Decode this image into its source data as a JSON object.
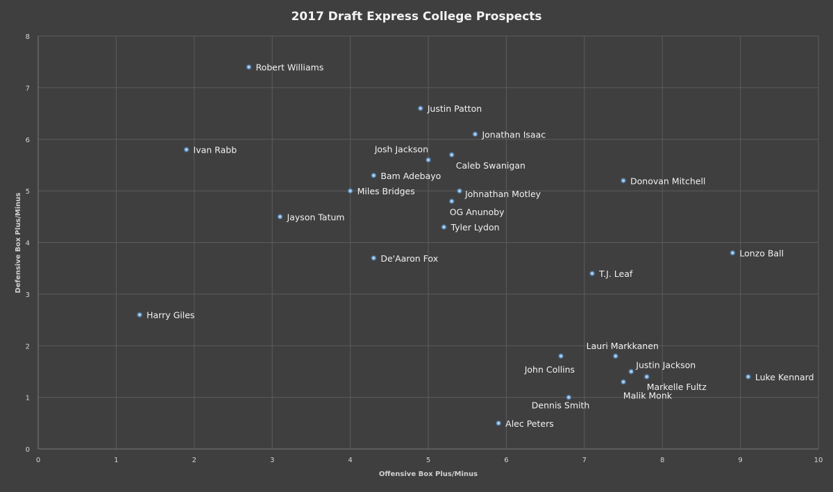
{
  "chart_data": {
    "type": "scatter",
    "title": "2017 Draft Express College Prospects",
    "xlabel": "Offensive Box Plus/Minus",
    "ylabel": "Defensive Box Plus/Minus",
    "xlim": [
      0,
      10
    ],
    "ylim": [
      0,
      8
    ],
    "x_ticks": [
      "0",
      "1",
      "2",
      "3",
      "4",
      "5",
      "6",
      "7",
      "8",
      "9",
      "10"
    ],
    "y_ticks": [
      "0",
      "1",
      "2",
      "3",
      "4",
      "5",
      "6",
      "7",
      "8"
    ],
    "grid": true,
    "colors": {
      "background": "#3f3f3f",
      "marker": "#a9cdec",
      "text": "#f2f2f2"
    },
    "points": [
      {
        "label": "Robert Williams",
        "x": 2.7,
        "y": 7.4,
        "label_pos": "right"
      },
      {
        "label": "Justin Patton",
        "x": 4.9,
        "y": 6.6,
        "label_pos": "right"
      },
      {
        "label": "Jonathan Isaac",
        "x": 5.6,
        "y": 6.1,
        "label_pos": "right"
      },
      {
        "label": "Ivan Rabb",
        "x": 1.9,
        "y": 5.8,
        "label_pos": "right"
      },
      {
        "label": "Josh Jackson",
        "x": 5.0,
        "y": 5.6,
        "label_pos": "above-left"
      },
      {
        "label": "Caleb Swanigan",
        "x": 5.3,
        "y": 5.7,
        "label_pos": "below-right"
      },
      {
        "label": "Bam Adebayo",
        "x": 4.3,
        "y": 5.3,
        "label_pos": "right"
      },
      {
        "label": "Donovan Mitchell",
        "x": 7.5,
        "y": 5.2,
        "label_pos": "right"
      },
      {
        "label": "Miles Bridges",
        "x": 4.0,
        "y": 5.0,
        "label_pos": "right"
      },
      {
        "label": "Johnathan Motley",
        "x": 5.4,
        "y": 5.0,
        "label_pos": "below-right"
      },
      {
        "label": "OG Anunoby",
        "x": 5.3,
        "y": 4.8,
        "label_pos": "below"
      },
      {
        "label": "Jayson Tatum",
        "x": 3.1,
        "y": 4.5,
        "label_pos": "right"
      },
      {
        "label": "Tyler Lydon",
        "x": 5.2,
        "y": 4.3,
        "label_pos": "right"
      },
      {
        "label": "Lonzo Ball",
        "x": 8.9,
        "y": 3.8,
        "label_pos": "right"
      },
      {
        "label": "De'Aaron Fox",
        "x": 4.3,
        "y": 3.7,
        "label_pos": "right"
      },
      {
        "label": "T.J. Leaf",
        "x": 7.1,
        "y": 3.4,
        "label_pos": "right"
      },
      {
        "label": "Harry Giles",
        "x": 1.3,
        "y": 2.6,
        "label_pos": "right"
      },
      {
        "label": "Lauri Markkanen",
        "x": 7.4,
        "y": 1.8,
        "label_pos": "above"
      },
      {
        "label": "John Collins",
        "x": 6.7,
        "y": 1.8,
        "label_pos": "below-left"
      },
      {
        "label": "Justin Jackson",
        "x": 7.6,
        "y": 1.5,
        "label_pos": "above-right"
      },
      {
        "label": "Luke Kennard",
        "x": 9.1,
        "y": 1.4,
        "label_pos": "right"
      },
      {
        "label": "Markelle Fultz",
        "x": 7.8,
        "y": 1.4,
        "label_pos": "below-right"
      },
      {
        "label": "Malik Monk",
        "x": 7.5,
        "y": 1.3,
        "label_pos": "below-left"
      },
      {
        "label": "Dennis Smith",
        "x": 6.8,
        "y": 1.0,
        "label_pos": "below-left"
      },
      {
        "label": "Alec Peters",
        "x": 5.9,
        "y": 0.5,
        "label_pos": "right"
      }
    ]
  }
}
